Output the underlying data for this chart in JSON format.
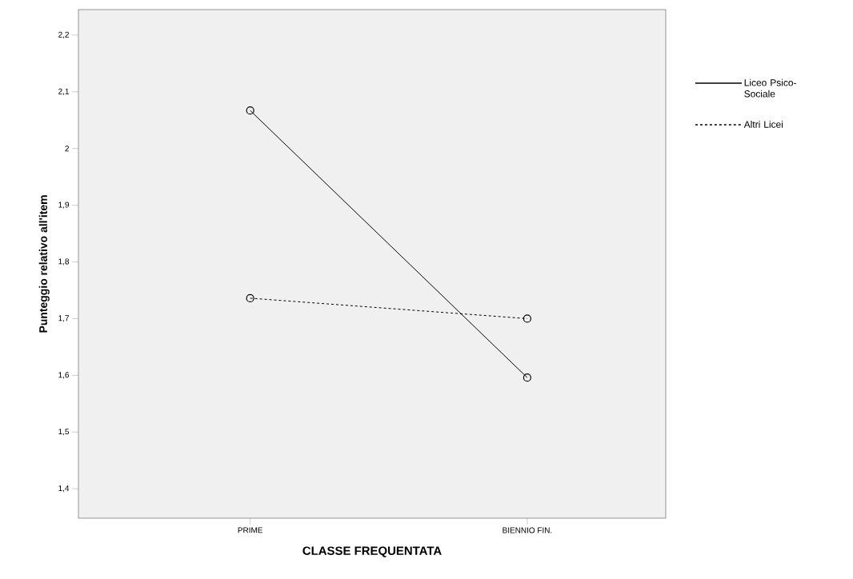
{
  "chart_data": {
    "type": "line",
    "xlabel": "CLASSE FREQUENTATA",
    "ylabel": "Punteggio relativo all'item",
    "categories": [
      "PRIME",
      "BIENNIO FIN."
    ],
    "series": [
      {
        "name": "Liceo Psico-Sociale",
        "color": "#000000",
        "line_style": "solid",
        "values": [
          2.067,
          1.596
        ]
      },
      {
        "name": "Altri Licei",
        "color": "#000000",
        "line_style": "dashed",
        "values": [
          1.736,
          1.7
        ]
      }
    ],
    "ylim": [
      1.348,
      2.245
    ],
    "yticks": [
      {
        "value": 1.4,
        "label": "1,4"
      },
      {
        "value": 1.5,
        "label": "1,5"
      },
      {
        "value": 1.6,
        "label": "1,6"
      },
      {
        "value": 1.7,
        "label": "1,7"
      },
      {
        "value": 1.8,
        "label": "1,8"
      },
      {
        "value": 1.9,
        "label": "1,9"
      },
      {
        "value": 2,
        "label": "2"
      },
      {
        "value": 2.1,
        "label": "2,1"
      },
      {
        "value": 2.2,
        "label": "2,2"
      }
    ],
    "grid": false,
    "legend": "right",
    "marker": "circle"
  }
}
